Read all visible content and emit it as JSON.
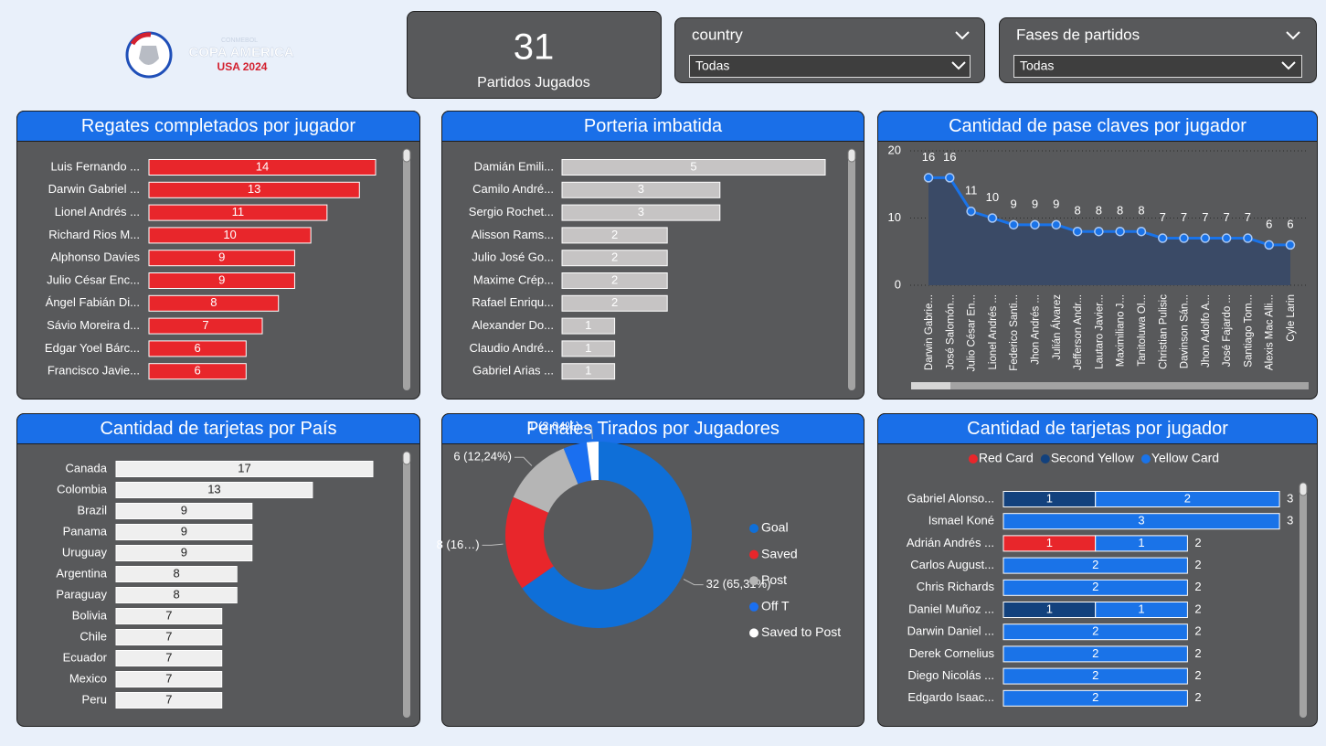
{
  "logo": {
    "org": "CONMEBOL",
    "title": "COPA AMERICA",
    "edition": "USA 2024"
  },
  "kpi": {
    "value": 31,
    "label": "Partidos Jugados"
  },
  "slicers": [
    {
      "title": "country",
      "selection": "Todas"
    },
    {
      "title": "Fases de partidos",
      "selection": "Todas"
    }
  ],
  "chart_data": [
    {
      "type": "hbar",
      "title": "Regates completados por jugador",
      "categories": [
        "Luis Fernando ...",
        "Darwin Gabriel ...",
        "Lionel Andrés ...",
        "Richard Rios M...",
        "Alphonso Davies",
        "Julio César Enc...",
        "Ángel Fabián Di...",
        "Sávio Moreira d...",
        "Edgar Yoel Bárc...",
        "Francisco Javie..."
      ],
      "values": [
        14,
        13,
        11,
        10,
        9,
        9,
        8,
        7,
        6,
        6
      ],
      "color": "#e8262b"
    },
    {
      "type": "hbar",
      "title": "Porteria imbatida",
      "categories": [
        "Damián Emili...",
        "Camilo André...",
        "Sergio Rochet...",
        "Alisson Rams...",
        "Julio José Go...",
        "Maxime Crép...",
        "Rafael Enriqu...",
        "Alexander Do...",
        "Claudio André...",
        "Gabriel Arias ..."
      ],
      "values": [
        5,
        3,
        3,
        2,
        2,
        2,
        2,
        1,
        1,
        1
      ],
      "color": "#c6c4c4"
    },
    {
      "type": "area",
      "title": "Cantidad de pase claves por jugador",
      "categories": [
        "Darwin Gabrie...",
        "José Salomón...",
        "Julio César En...",
        "Lionel Andrés ...",
        "Federico Santi...",
        "Jhon Andrés ...",
        "Julián Álvarez",
        "Jefferson Andr...",
        "Lautaro Javier...",
        "Maximiliano J...",
        "Tanitoluwa Ol...",
        "Christian Pulisic",
        "Davinson Sán...",
        "Jhon Adolfo A...",
        "José Fajardo ...",
        "Santiago Tom...",
        "Alexis Mac Alli...",
        "Cyle Larin"
      ],
      "values": [
        16,
        16,
        11,
        10,
        9,
        9,
        9,
        8,
        8,
        8,
        8,
        7,
        7,
        7,
        7,
        7,
        6,
        6
      ],
      "color": "#1a73e8",
      "ylim": [
        0,
        20
      ],
      "yticks": [
        0,
        10,
        20
      ],
      "grid": true
    },
    {
      "type": "hbar",
      "title": "Cantidad de tarjetas por País",
      "categories": [
        "Canada",
        "Colombia",
        "Brazil",
        "Panama",
        "Uruguay",
        "Argentina",
        "Paraguay",
        "Bolivia",
        "Chile",
        "Ecuador",
        "Mexico",
        "Peru"
      ],
      "values": [
        17,
        13,
        9,
        9,
        9,
        8,
        8,
        7,
        7,
        7,
        7,
        7
      ],
      "color": "#efefef"
    },
    {
      "type": "donut",
      "title": "Penales Tirados por Jugadores",
      "categories": [
        "Goal",
        "Saved",
        "Post",
        "Off T",
        "Saved to Post"
      ],
      "values": [
        32,
        8,
        6,
        2,
        1
      ],
      "value_labels": [
        "32 (65,31%)",
        "8 (16…)",
        "6 (12,24%)",
        null,
        "1 (2,04%)"
      ],
      "colors": [
        "#0f6fd8",
        "#e8262b",
        "#b5b5b5",
        "#1a6ff0",
        "#ffffff"
      ],
      "legend": "right"
    },
    {
      "type": "stacked_hbar",
      "title": "Cantidad de tarjetas por jugador",
      "categories": [
        "Gabriel Alonso...",
        "Ismael Koné",
        "Adrián Andrés ...",
        "Carlos August...",
        "Chris Richards",
        "Daniel Muñoz ...",
        "Darwin Daniel ...",
        "Derek Cornelius",
        "Diego Nicolás ...",
        "Edgardo Isaac..."
      ],
      "series": [
        {
          "name": "Red Card",
          "color": "#e8262b",
          "values": [
            null,
            null,
            1,
            null,
            null,
            null,
            null,
            null,
            null,
            null
          ]
        },
        {
          "name": "Second Yellow",
          "color": "#12417d",
          "values": [
            1,
            null,
            null,
            null,
            null,
            1,
            null,
            null,
            null,
            null
          ]
        },
        {
          "name": "Yellow Card",
          "color": "#1a73e8",
          "values": [
            2,
            3,
            1,
            2,
            2,
            1,
            2,
            2,
            2,
            2
          ]
        }
      ],
      "totals": [
        3,
        3,
        2,
        2,
        2,
        2,
        2,
        2,
        2,
        2
      ],
      "legend": "top"
    }
  ]
}
